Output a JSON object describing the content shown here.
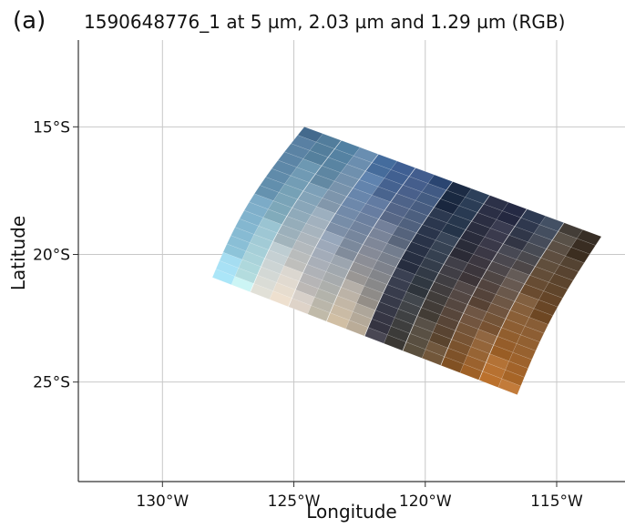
{
  "panel_label": "(a)",
  "chart_data": {
    "type": "heatmap",
    "title": "1590648776_1 at 5 µm, 2.03 µm and 1.29 µm (RGB)",
    "xlabel": "Longitude",
    "ylabel": "Latitude",
    "xlim": [
      -133.2,
      -112.4
    ],
    "ylim": [
      -28.9,
      -11.6
    ],
    "x_ticks": [
      -130,
      -125,
      -120,
      -115
    ],
    "x_tick_labels": [
      "130°W",
      "125°W",
      "120°W",
      "115°W"
    ],
    "y_ticks": [
      -15,
      -20,
      -25
    ],
    "y_tick_labels": [
      "15°S",
      "20°S",
      "25°S"
    ],
    "grid": true,
    "swath_corners": {
      "top_left": [
        -124.6,
        -15.0
      ],
      "top_right": [
        -113.3,
        -19.3
      ],
      "bottom_right": [
        -116.5,
        -25.5
      ],
      "bottom_left": [
        -128.1,
        -20.9
      ]
    },
    "columns": 16,
    "rows": 18,
    "column_colors": [
      {
        "top": "#4d7396",
        "bottom": "#a8e3f5"
      },
      {
        "top": "#55809f",
        "bottom": "#c3ecec"
      },
      {
        "top": "#4f7ea0",
        "bottom": "#e7e6dd"
      },
      {
        "top": "#6085a8",
        "bottom": "#eee0cf"
      },
      {
        "top": "#4a72a3",
        "bottom": "#d8cdc2"
      },
      {
        "top": "#3f5f93",
        "bottom": "#c9c3b2"
      },
      {
        "top": "#3c5788",
        "bottom": "#d4c2a7"
      },
      {
        "top": "#334e7a",
        "bottom": "#b7a995"
      },
      {
        "top": "#1f2e47",
        "bottom": "#403e4a"
      },
      {
        "top": "#2a3d57",
        "bottom": "#413e3a"
      },
      {
        "top": "#23283f",
        "bottom": "#5a4f3e"
      },
      {
        "top": "#2b304a",
        "bottom": "#6c5134"
      },
      {
        "top": "#2e3a52",
        "bottom": "#8a5a2c"
      },
      {
        "top": "#3d4a5e",
        "bottom": "#a2642a"
      },
      {
        "top": "#4c4640",
        "bottom": "#b86e2a"
      },
      {
        "top": "#3a3128",
        "bottom": "#b97231"
      }
    ]
  }
}
